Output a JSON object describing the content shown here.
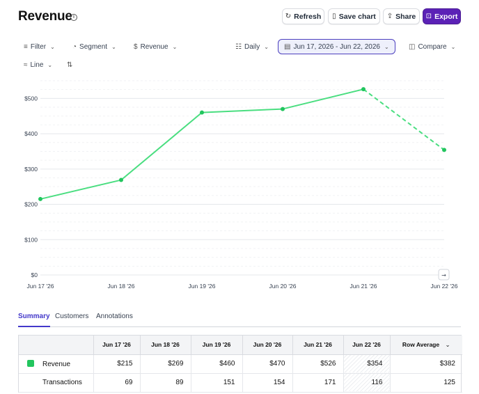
{
  "header": {
    "title": "Revenue",
    "info_glyph": "i",
    "buttons": {
      "refresh": {
        "label": "Refresh",
        "icon": "refresh-icon",
        "glyph": "↻"
      },
      "save_chart": {
        "label": "Save chart",
        "icon": "bookmark-icon",
        "glyph": "▯"
      },
      "share": {
        "label": "Share",
        "icon": "share-icon",
        "glyph": "⇪"
      },
      "export": {
        "label": "Export",
        "icon": "export-icon",
        "glyph": "⊡"
      }
    },
    "accent_color": "#5b21b6"
  },
  "toolbar": {
    "filter": {
      "label": "Filter",
      "icon": "filter-icon",
      "glyph": "≡"
    },
    "segment": {
      "label": "Segment",
      "icon": "segment-icon",
      "glyph": "◔"
    },
    "metric": {
      "label": "Revenue",
      "icon": "dollar-icon",
      "glyph": "$"
    },
    "interval": {
      "label": "Daily",
      "icon": "calendar-grid-icon",
      "glyph": "☷"
    },
    "date_range": {
      "label": "Jun 17, 2026 - Jun 22, 2026",
      "icon": "calendar-icon",
      "glyph": "▤"
    },
    "compare": {
      "label": "Compare",
      "icon": "compare-icon",
      "glyph": "◫"
    },
    "chart_type": {
      "label": "Line",
      "icon": "line-chart-icon",
      "glyph": "≈"
    },
    "settings": {
      "icon": "adjust-icon",
      "glyph": "⇅"
    },
    "chevron": "⌄"
  },
  "chart_data": {
    "type": "line",
    "categories": [
      "Jun 17 '26",
      "Jun 18 '26",
      "Jun 19 '26",
      "Jun 20 '26",
      "Jun 21 '26",
      "Jun 22 '26"
    ],
    "series": [
      {
        "name": "Revenue",
        "values": [
          215,
          269,
          460,
          470,
          526,
          354
        ],
        "color": "#22c55e",
        "line_color": "#4ade80",
        "last_segment_dashed": true
      }
    ],
    "y_ticks": [
      "$0",
      "$100",
      "$200",
      "$300",
      "$400",
      "$500"
    ],
    "ylim": [
      0,
      550
    ],
    "grid": true,
    "expand_glyph": "→"
  },
  "tabs": [
    {
      "label": "Summary",
      "active": true
    },
    {
      "label": "Customers",
      "active": false
    },
    {
      "label": "Annotations",
      "active": false
    }
  ],
  "table": {
    "columns": [
      "Jun 17 '26",
      "Jun 18 '26",
      "Jun 19 '26",
      "Jun 20 '26",
      "Jun 21 '26",
      "Jun 22 '26",
      "Row Average"
    ],
    "sort_glyph": "⌄",
    "rows": [
      {
        "name": "Revenue",
        "color": "#22c55e",
        "values": [
          "$215",
          "$269",
          "$460",
          "$470",
          "$526",
          "$354",
          "$382"
        ]
      },
      {
        "name": "Transactions",
        "values": [
          "69",
          "89",
          "151",
          "154",
          "171",
          "116",
          "125"
        ]
      }
    ]
  }
}
